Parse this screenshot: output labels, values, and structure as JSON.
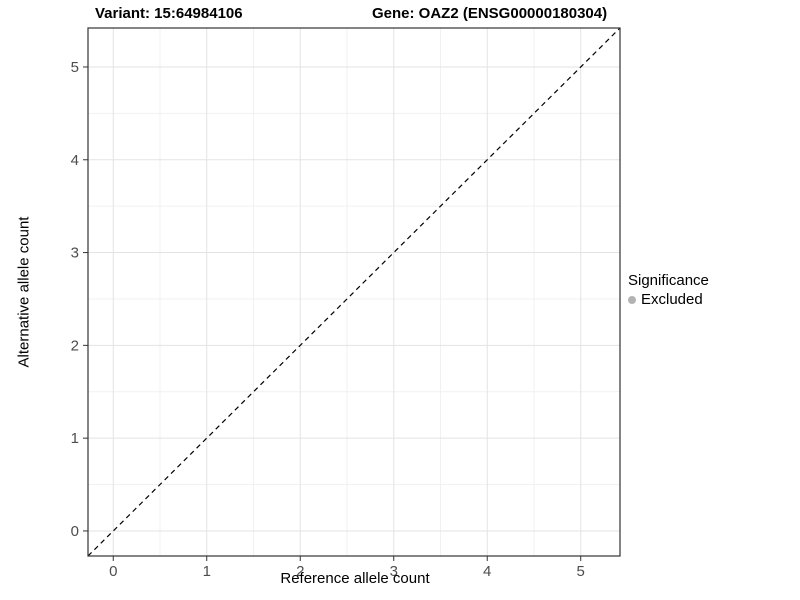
{
  "header": {
    "title_left": "Variant: 15:64984106",
    "title_right": "Gene: OAZ2 (ENSG00000180304)"
  },
  "chart_data": {
    "type": "scatter",
    "title_left": "Variant: 15:64984106",
    "title_right": "Gene: OAZ2 (ENSG00000180304)",
    "xlabel": "Reference allele count",
    "ylabel": "Alternative allele count",
    "xlim": [
      -0.27,
      5.42
    ],
    "ylim": [
      -0.27,
      5.42
    ],
    "xticks": [
      0,
      1,
      2,
      3,
      4,
      5
    ],
    "yticks": [
      0,
      1,
      2,
      3,
      4,
      5
    ],
    "xminor": [
      0.5,
      1.5,
      2.5,
      3.5,
      4.5
    ],
    "yminor": [
      0.5,
      1.5,
      2.5,
      3.5,
      4.5
    ],
    "points": [],
    "identity_line": {
      "style": "dashed",
      "color": "#000000",
      "from": [
        -0.27,
        -0.27
      ],
      "to": [
        5.42,
        5.42
      ]
    },
    "grid": {
      "major": true,
      "minor": true,
      "major_color": "#e3e3e3",
      "minor_color": "#f1f1f1"
    },
    "panel": {
      "background": "#ffffff",
      "border_color": "#333333"
    },
    "tick_color": "#333333",
    "tick_label_color": "#4d4d4d",
    "legend": {
      "title": "Significance",
      "position": "right",
      "entries": [
        {
          "label": "Excluded",
          "color": "#b3b3b3"
        }
      ]
    }
  }
}
